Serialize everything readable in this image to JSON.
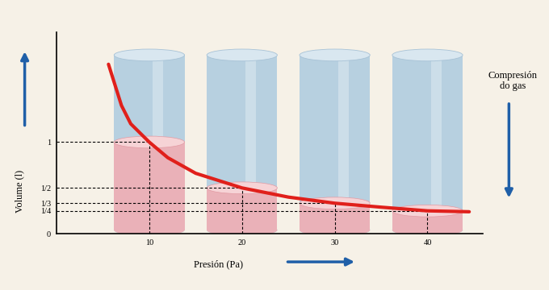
{
  "chart_data": {
    "type": "line",
    "x_label": "Presión (Pa)",
    "y_label": "Volume (l)",
    "annotation": "Compresión\ndo gas",
    "x": [
      5.6,
      7,
      8,
      10,
      12,
      15,
      20,
      25,
      30,
      35,
      40,
      44.5
    ],
    "values": [
      1.85,
      1.4,
      1.2,
      1.0,
      0.83,
      0.66,
      0.5,
      0.4,
      0.3333,
      0.29,
      0.25,
      0.24
    ],
    "color": "#e0201b",
    "levels": {
      "x": [
        10,
        20,
        30,
        40
      ],
      "values": [
        1,
        0.5,
        0.3333,
        0.25
      ]
    },
    "xlim": [
      0,
      46
    ],
    "ylim": [
      0,
      2.2
    ],
    "xticks": [
      10,
      20,
      30,
      40
    ],
    "yticks": [
      0,
      {
        "value": 0.25,
        "label": "1/4"
      },
      {
        "value": 0.3333,
        "label": "1/3"
      },
      {
        "value": 0.5,
        "label": "1/2"
      },
      1
    ],
    "grid": false
  }
}
